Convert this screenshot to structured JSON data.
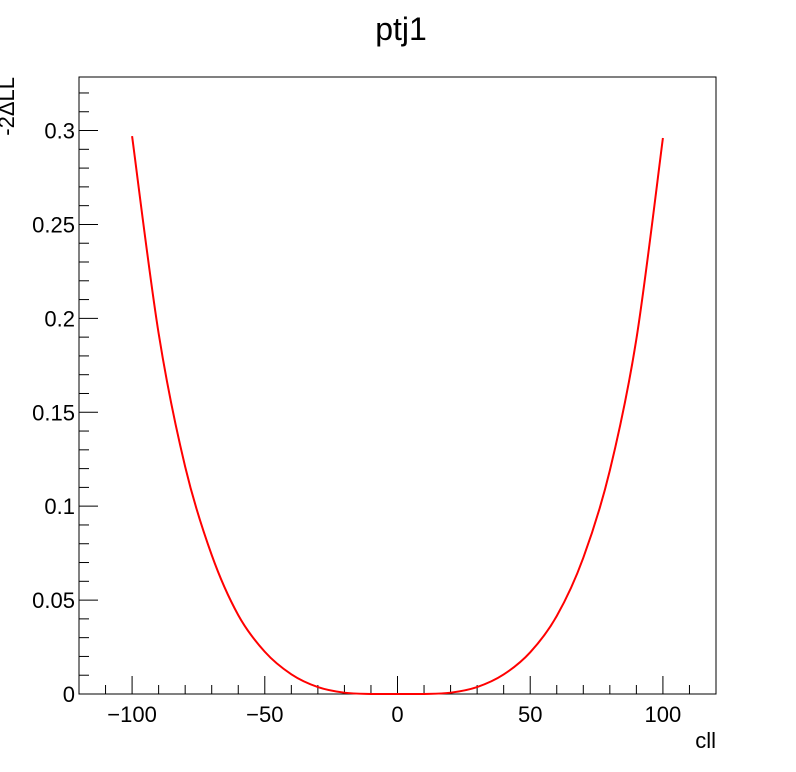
{
  "chart_data": {
    "type": "line",
    "title": "ptj1",
    "xlabel": "cll",
    "ylabel": "-2ΔLL",
    "xlim": [
      -120,
      120
    ],
    "ylim": [
      0,
      0.3285
    ],
    "grid": false,
    "x_ticks": [
      {
        "value": -100,
        "label": "−100"
      },
      {
        "value": -50,
        "label": "−50"
      },
      {
        "value": 0,
        "label": "0"
      },
      {
        "value": 50,
        "label": "50"
      },
      {
        "value": 100,
        "label": "100"
      }
    ],
    "y_ticks": [
      {
        "value": 0,
        "label": "0"
      },
      {
        "value": 0.05,
        "label": "0.05"
      },
      {
        "value": 0.1,
        "label": "0.1"
      },
      {
        "value": 0.15,
        "label": "0.15"
      },
      {
        "value": 0.2,
        "label": "0.2"
      },
      {
        "value": 0.25,
        "label": "0.25"
      },
      {
        "value": 0.3,
        "label": "0.3"
      }
    ],
    "series": [
      {
        "color": "#ff0000",
        "x": [
          -100,
          -90,
          -80,
          -70,
          -60,
          -50,
          -40,
          -30,
          -20,
          -10,
          0,
          10,
          20,
          30,
          40,
          50,
          60,
          70,
          80,
          90,
          100
        ],
        "y": [
          0.297,
          0.192,
          0.121,
          0.074,
          0.042,
          0.0225,
          0.0105,
          0.0037,
          0.0007,
          0.0,
          0.0,
          0.0,
          0.0007,
          0.0037,
          0.0104,
          0.0222,
          0.0415,
          0.0725,
          0.119,
          0.189,
          0.296
        ]
      }
    ]
  }
}
